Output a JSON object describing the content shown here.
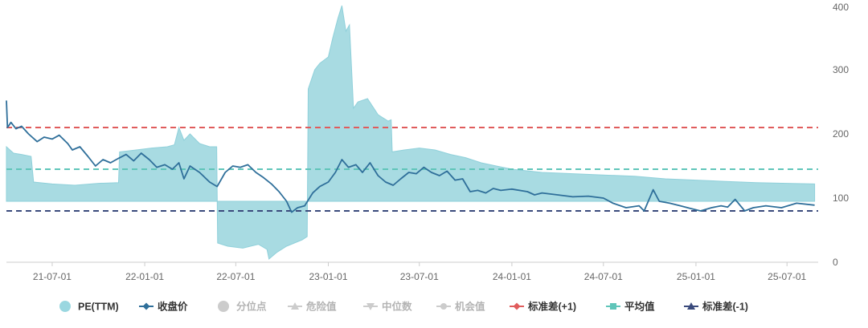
{
  "chart_data": {
    "type": "line",
    "x_range": [
      "2021-04-01",
      "2025-09-01"
    ],
    "y_range": [
      0,
      400
    ],
    "y_axis_position": "right",
    "yticks": [
      "0",
      "100",
      "200",
      "300",
      "400"
    ],
    "xticks": [
      {
        "date": "2021-07-01",
        "label": "21-07-01"
      },
      {
        "date": "2022-01-01",
        "label": "22-01-01"
      },
      {
        "date": "2022-07-01",
        "label": "22-07-01"
      },
      {
        "date": "2023-01-01",
        "label": "23-01-01"
      },
      {
        "date": "2023-07-01",
        "label": "23-07-01"
      },
      {
        "date": "2024-01-01",
        "label": "24-01-01"
      },
      {
        "date": "2024-07-01",
        "label": "24-07-01"
      },
      {
        "date": "2025-01-01",
        "label": "25-01-01"
      },
      {
        "date": "2025-07-01",
        "label": "25-07-01"
      }
    ],
    "band_base": 95,
    "pe_ttm": [
      [
        "2021-04-01",
        180
      ],
      [
        "2021-04-15",
        170
      ],
      [
        "2021-05-01",
        168
      ],
      [
        "2021-05-20",
        165
      ],
      [
        "2021-05-25",
        125
      ],
      [
        "2021-07-01",
        122
      ],
      [
        "2021-08-15",
        120
      ],
      [
        "2021-10-01",
        123
      ],
      [
        "2021-11-10",
        124
      ],
      [
        "2021-11-12",
        172
      ],
      [
        "2021-12-15",
        175
      ],
      [
        "2022-01-15",
        178
      ],
      [
        "2022-02-15",
        180
      ],
      [
        "2022-03-01",
        183
      ],
      [
        "2022-03-10",
        210
      ],
      [
        "2022-03-20",
        190
      ],
      [
        "2022-04-01",
        200
      ],
      [
        "2022-04-20",
        185
      ],
      [
        "2022-05-10",
        180
      ],
      [
        "2022-05-24",
        180
      ],
      [
        "2022-05-26",
        30
      ],
      [
        "2022-06-15",
        25
      ],
      [
        "2022-07-15",
        22
      ],
      [
        "2022-08-15",
        28
      ],
      [
        "2022-09-01",
        20
      ],
      [
        "2022-09-05",
        5
      ],
      [
        "2022-09-20",
        15
      ],
      [
        "2022-10-10",
        25
      ],
      [
        "2022-11-10",
        35
      ],
      [
        "2022-11-20",
        40
      ],
      [
        "2022-11-22",
        270
      ],
      [
        "2022-12-05",
        300
      ],
      [
        "2022-12-15",
        310
      ],
      [
        "2023-01-01",
        320
      ],
      [
        "2023-01-10",
        350
      ],
      [
        "2023-01-20",
        380
      ],
      [
        "2023-01-28",
        400
      ],
      [
        "2023-02-05",
        360
      ],
      [
        "2023-02-12",
        370
      ],
      [
        "2023-02-20",
        240
      ],
      [
        "2023-03-01",
        250
      ],
      [
        "2023-03-20",
        255
      ],
      [
        "2023-04-10",
        230
      ],
      [
        "2023-04-30",
        220
      ],
      [
        "2023-05-06",
        222
      ],
      [
        "2023-05-08",
        172
      ],
      [
        "2023-06-01",
        175
      ],
      [
        "2023-07-01",
        178
      ],
      [
        "2023-08-01",
        175
      ],
      [
        "2023-09-01",
        168
      ],
      [
        "2023-10-01",
        163
      ],
      [
        "2023-11-01",
        155
      ],
      [
        "2023-12-01",
        150
      ],
      [
        "2024-01-01",
        145
      ],
      [
        "2024-03-01",
        140
      ],
      [
        "2024-05-01",
        138
      ],
      [
        "2024-07-01",
        136
      ],
      [
        "2024-09-01",
        134
      ],
      [
        "2024-11-01",
        130
      ],
      [
        "2025-01-01",
        128
      ],
      [
        "2025-03-01",
        126
      ],
      [
        "2025-05-01",
        124
      ],
      [
        "2025-07-01",
        123
      ],
      [
        "2025-08-25",
        122
      ]
    ],
    "close_price": [
      [
        "2021-04-01",
        252
      ],
      [
        "2021-04-03",
        210
      ],
      [
        "2021-04-10",
        218
      ],
      [
        "2021-04-20",
        208
      ],
      [
        "2021-05-01",
        212
      ],
      [
        "2021-05-15",
        200
      ],
      [
        "2021-06-01",
        188
      ],
      [
        "2021-06-15",
        195
      ],
      [
        "2021-07-01",
        192
      ],
      [
        "2021-07-15",
        198
      ],
      [
        "2021-08-01",
        185
      ],
      [
        "2021-08-10",
        175
      ],
      [
        "2021-08-25",
        180
      ],
      [
        "2021-09-10",
        165
      ],
      [
        "2021-09-25",
        150
      ],
      [
        "2021-10-10",
        160
      ],
      [
        "2021-10-25",
        155
      ],
      [
        "2021-11-10",
        162
      ],
      [
        "2021-11-25",
        168
      ],
      [
        "2021-12-10",
        158
      ],
      [
        "2021-12-25",
        170
      ],
      [
        "2022-01-10",
        160
      ],
      [
        "2022-01-25",
        148
      ],
      [
        "2022-02-10",
        152
      ],
      [
        "2022-02-25",
        145
      ],
      [
        "2022-03-10",
        155
      ],
      [
        "2022-03-20",
        130
      ],
      [
        "2022-04-01",
        150
      ],
      [
        "2022-04-20",
        140
      ],
      [
        "2022-05-10",
        125
      ],
      [
        "2022-05-25",
        118
      ],
      [
        "2022-06-10",
        140
      ],
      [
        "2022-06-25",
        150
      ],
      [
        "2022-07-10",
        148
      ],
      [
        "2022-07-25",
        152
      ],
      [
        "2022-08-10",
        140
      ],
      [
        "2022-08-25",
        132
      ],
      [
        "2022-09-10",
        122
      ],
      [
        "2022-09-25",
        110
      ],
      [
        "2022-10-10",
        95
      ],
      [
        "2022-10-20",
        78
      ],
      [
        "2022-11-01",
        85
      ],
      [
        "2022-11-15",
        88
      ],
      [
        "2022-12-01",
        108
      ],
      [
        "2022-12-15",
        118
      ],
      [
        "2023-01-01",
        125
      ],
      [
        "2023-01-15",
        140
      ],
      [
        "2023-01-28",
        160
      ],
      [
        "2023-02-10",
        148
      ],
      [
        "2023-02-25",
        152
      ],
      [
        "2023-03-10",
        140
      ],
      [
        "2023-03-25",
        155
      ],
      [
        "2023-04-10",
        135
      ],
      [
        "2023-04-25",
        125
      ],
      [
        "2023-05-10",
        120
      ],
      [
        "2023-05-25",
        130
      ],
      [
        "2023-06-10",
        140
      ],
      [
        "2023-06-25",
        138
      ],
      [
        "2023-07-10",
        148
      ],
      [
        "2023-07-25",
        140
      ],
      [
        "2023-08-10",
        135
      ],
      [
        "2023-08-25",
        142
      ],
      [
        "2023-09-10",
        128
      ],
      [
        "2023-09-25",
        130
      ],
      [
        "2023-10-10",
        110
      ],
      [
        "2023-10-25",
        112
      ],
      [
        "2023-11-10",
        108
      ],
      [
        "2023-11-25",
        115
      ],
      [
        "2023-12-10",
        112
      ],
      [
        "2024-01-01",
        114
      ],
      [
        "2024-02-01",
        110
      ],
      [
        "2024-02-15",
        105
      ],
      [
        "2024-03-01",
        108
      ],
      [
        "2024-04-01",
        105
      ],
      [
        "2024-05-01",
        102
      ],
      [
        "2024-06-01",
        103
      ],
      [
        "2024-07-01",
        100
      ],
      [
        "2024-07-20",
        92
      ],
      [
        "2024-08-15",
        85
      ],
      [
        "2024-09-10",
        88
      ],
      [
        "2024-09-20",
        80
      ],
      [
        "2024-10-08",
        113
      ],
      [
        "2024-10-20",
        95
      ],
      [
        "2024-11-10",
        92
      ],
      [
        "2024-12-01",
        88
      ],
      [
        "2024-12-20",
        84
      ],
      [
        "2025-01-10",
        80
      ],
      [
        "2025-02-01",
        85
      ],
      [
        "2025-02-20",
        88
      ],
      [
        "2025-03-05",
        86
      ],
      [
        "2025-03-20",
        98
      ],
      [
        "2025-04-08",
        80
      ],
      [
        "2025-04-25",
        85
      ],
      [
        "2025-05-20",
        88
      ],
      [
        "2025-06-20",
        85
      ],
      [
        "2025-07-20",
        92
      ],
      [
        "2025-08-25",
        89
      ]
    ],
    "std_plus_1": 210,
    "mean": 145,
    "std_minus_1": 80,
    "legend": [
      {
        "label": "PE(TTM)",
        "marker": "circle",
        "color": "#9ad7e0",
        "active": true
      },
      {
        "label": "收盘价",
        "marker": "line-diamond",
        "color": "#2f6f9a",
        "active": true
      },
      {
        "label": "分位点",
        "marker": "circle",
        "color": "#cccccc",
        "active": false
      },
      {
        "label": "危险值",
        "marker": "line-triangle-up",
        "color": "#cccccc",
        "active": false
      },
      {
        "label": "中位数",
        "marker": "line-triangle-down",
        "color": "#cccccc",
        "active": false
      },
      {
        "label": "机会值",
        "marker": "line-circle",
        "color": "#cccccc",
        "active": false
      },
      {
        "label": "标准差(+1)",
        "marker": "line-diamond",
        "color": "#e05c5c",
        "active": true
      },
      {
        "label": "平均值",
        "marker": "line-square",
        "color": "#5fc5b9",
        "active": true
      },
      {
        "label": "标准差(-1)",
        "marker": "line-triangle-up",
        "color": "#3a4a7c",
        "active": true
      }
    ],
    "colors": {
      "band_fill": "#a8dbe2",
      "band_stroke": "#8fd0da",
      "close": "#2f6f9a",
      "std_plus": "#e05c5c",
      "mean": "#5fc5b9",
      "std_minus": "#3a4a7c",
      "axis": "#cccccc",
      "inactive_text": "#b3b3b3",
      "active_text": "#333333"
    }
  }
}
